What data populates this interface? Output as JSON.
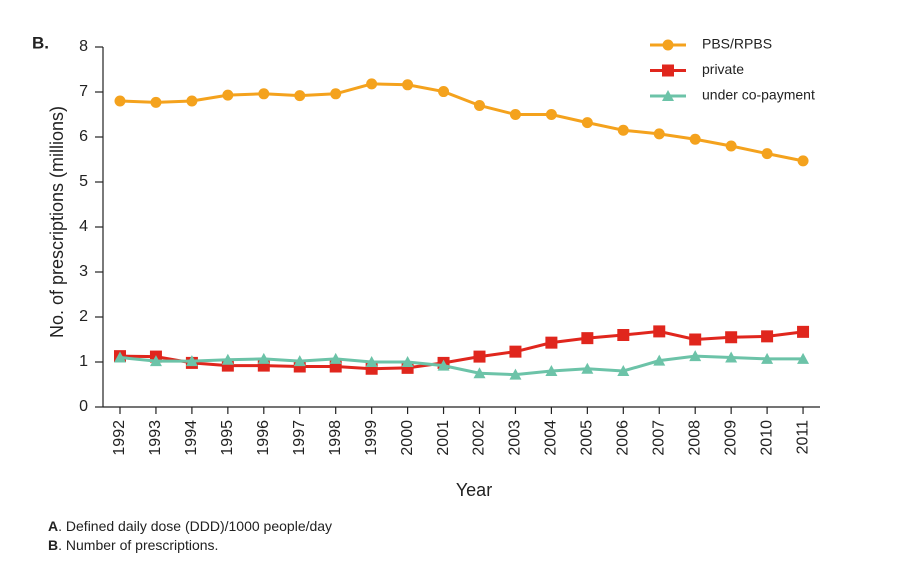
{
  "chart_data": {
    "type": "line",
    "panel_label": "B.",
    "y_label": "No. of prescriptions (millions)",
    "x_label": "Year",
    "categories": [
      "1992",
      "1993",
      "1994",
      "1995",
      "1996",
      "1997",
      "1998",
      "1999",
      "2000",
      "2001",
      "2002",
      "2003",
      "2004",
      "2005",
      "2006",
      "2007",
      "2008",
      "2009",
      "2010",
      "2011"
    ],
    "ylim": [
      0,
      8
    ],
    "yticks": [
      0,
      1,
      2,
      3,
      4,
      5,
      6,
      7,
      8
    ],
    "series": [
      {
        "name": "PBS/RPBS",
        "color": "#f4a21d",
        "marker": "circle",
        "values": [
          6.8,
          6.77,
          6.8,
          6.93,
          6.96,
          6.92,
          6.96,
          7.18,
          7.16,
          7.01,
          6.7,
          6.5,
          6.5,
          6.32,
          6.15,
          6.07,
          5.95,
          5.8,
          5.63,
          5.47
        ]
      },
      {
        "name": "private",
        "color": "#e0261d",
        "marker": "square",
        "values": [
          1.13,
          1.12,
          0.98,
          0.92,
          0.92,
          0.9,
          0.9,
          0.85,
          0.87,
          0.98,
          1.12,
          1.23,
          1.43,
          1.53,
          1.6,
          1.68,
          1.5,
          1.55,
          1.57,
          1.67
        ]
      },
      {
        "name": "under co-payment",
        "color": "#6cc3a8",
        "marker": "triangle",
        "values": [
          1.1,
          1.02,
          1.02,
          1.05,
          1.07,
          1.02,
          1.07,
          1.0,
          1.0,
          0.92,
          0.75,
          0.72,
          0.8,
          0.85,
          0.8,
          1.03,
          1.13,
          1.1,
          1.07,
          1.07
        ]
      }
    ],
    "notes": [
      {
        "label": "A",
        "text": ". Defined daily dose (DDD)/1000 people/day"
      },
      {
        "label": "B",
        "text": ". Number of prescriptions."
      }
    ]
  }
}
